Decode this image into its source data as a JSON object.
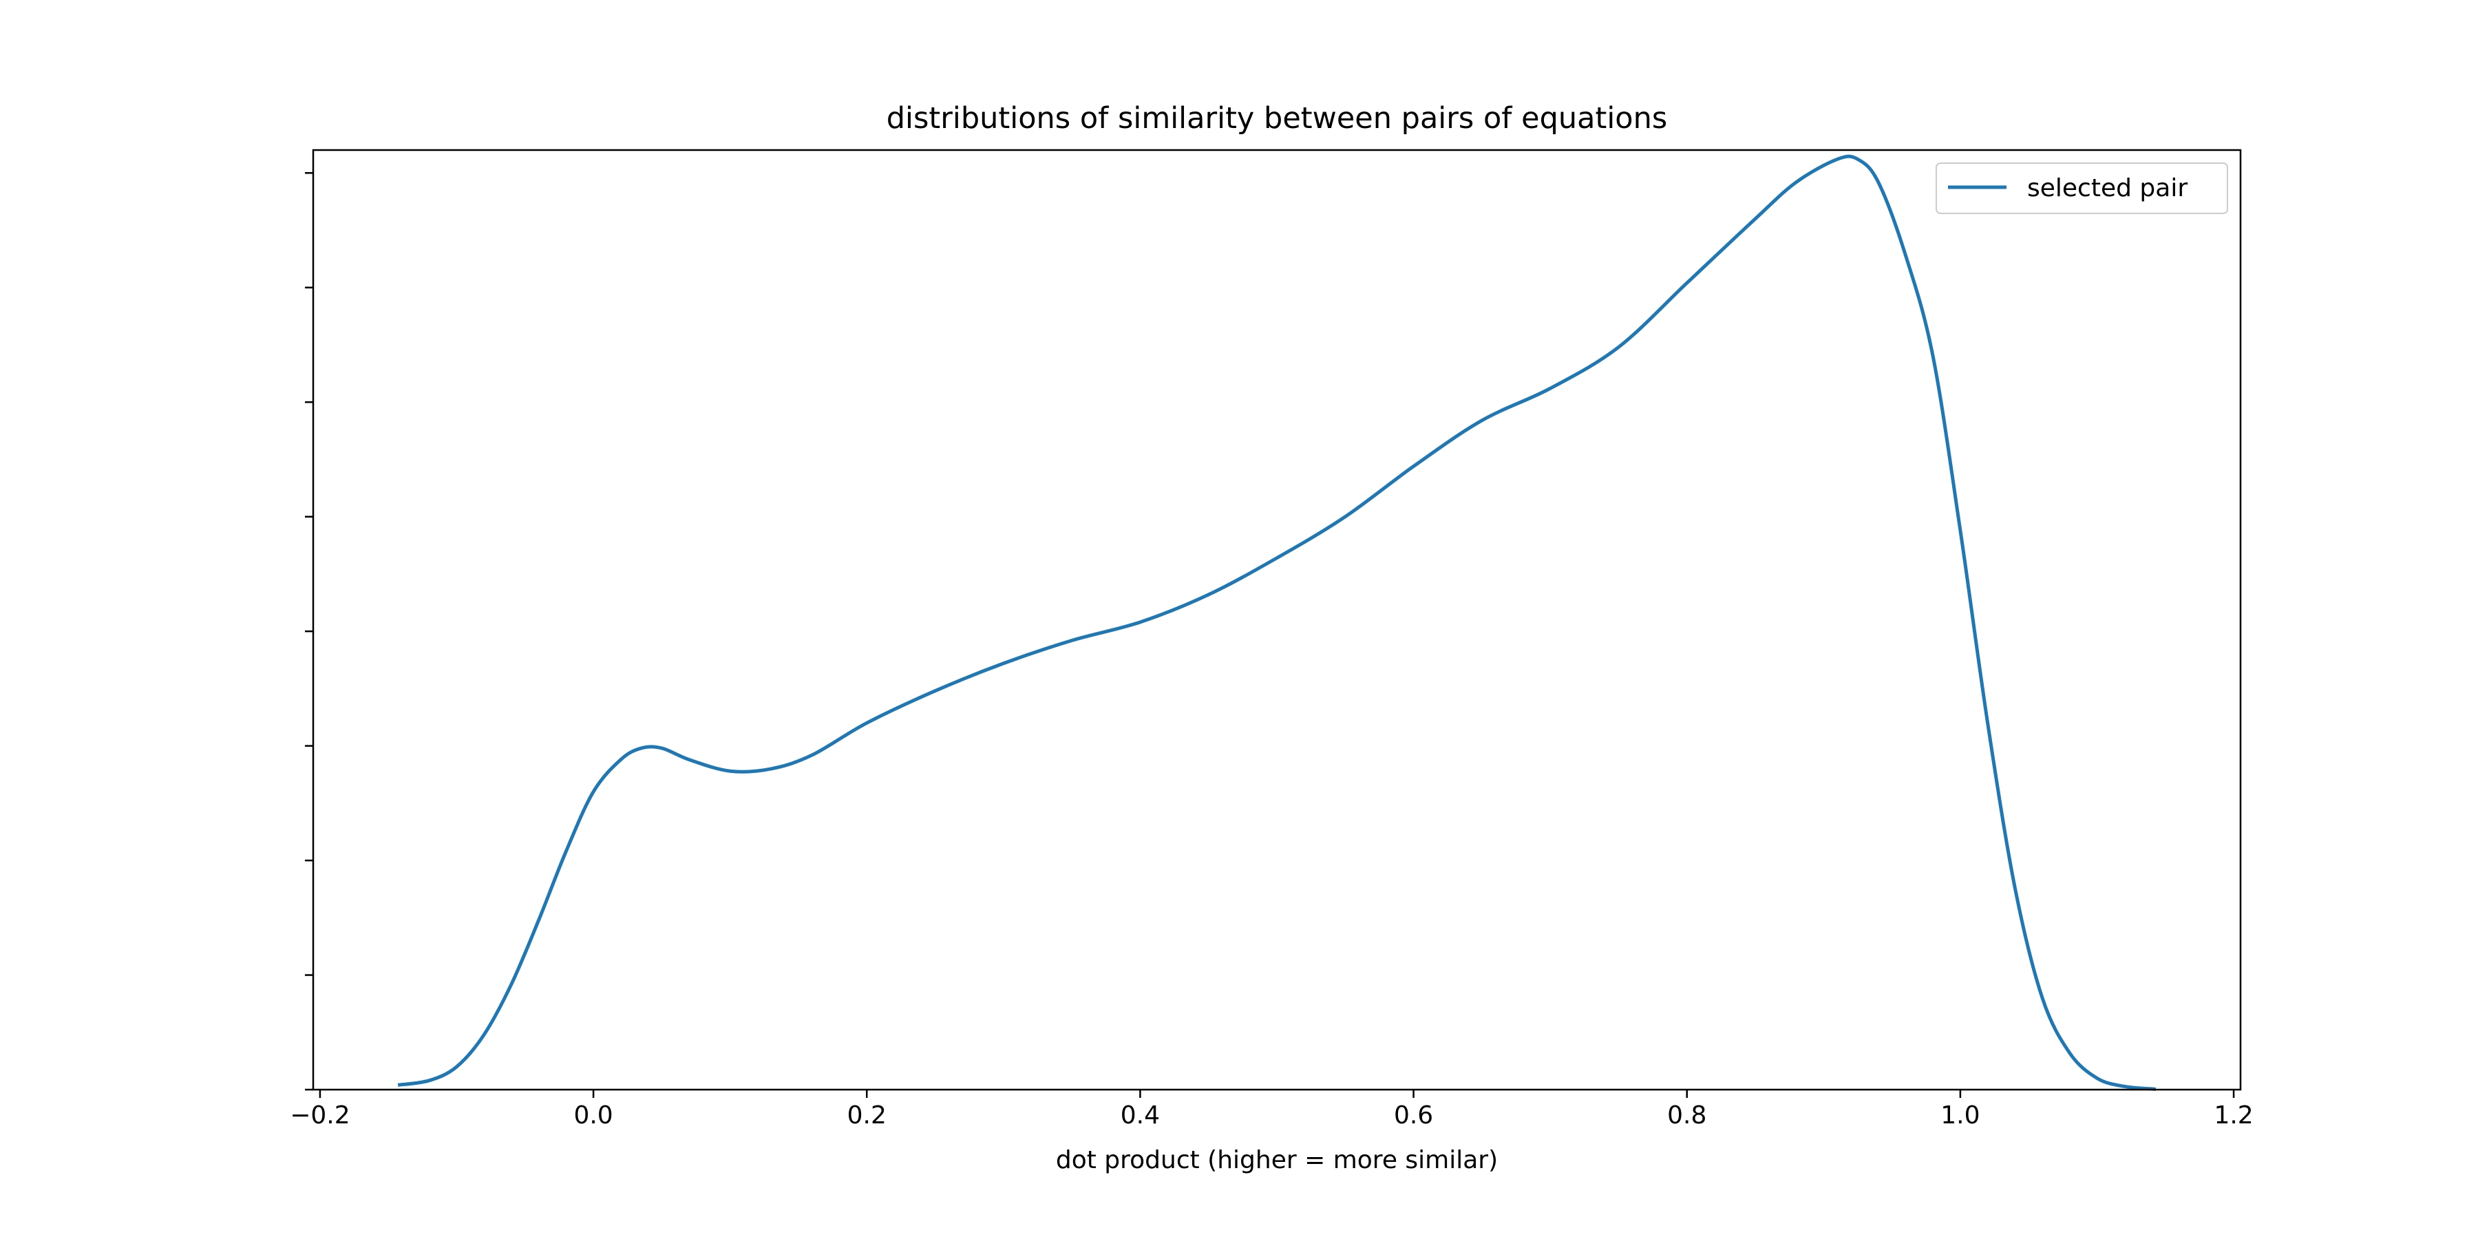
{
  "chart_data": {
    "type": "line",
    "title": "distributions of similarity between pairs of equations",
    "xlabel": "dot product (higher = more similar)",
    "ylabel": "",
    "xlim": [
      -0.205,
      1.205
    ],
    "ylim": [
      0,
      2.05
    ],
    "xticks": [
      -0.2,
      0.0,
      0.2,
      0.4,
      0.6,
      0.8,
      1.0,
      1.2
    ],
    "xtick_labels": [
      "−0.2",
      "0.0",
      "0.2",
      "0.4",
      "0.6",
      "0.8",
      "1.0",
      "1.2"
    ],
    "yticks": [
      0,
      0.25,
      0.5,
      0.75,
      1.0,
      1.25,
      1.5,
      1.75,
      2.0
    ],
    "ytick_labels_visible": false,
    "grid": false,
    "legend_position": "top-right",
    "series": [
      {
        "name": "selected pair",
        "color": "#1f77b4",
        "x": [
          -0.143,
          -0.12,
          -0.1,
          -0.08,
          -0.06,
          -0.04,
          -0.02,
          0.0,
          0.02,
          0.035,
          0.05,
          0.07,
          0.1,
          0.13,
          0.16,
          0.2,
          0.25,
          0.3,
          0.35,
          0.4,
          0.45,
          0.5,
          0.55,
          0.6,
          0.65,
          0.7,
          0.75,
          0.8,
          0.85,
          0.88,
          0.91,
          0.925,
          0.94,
          0.96,
          0.98,
          1.0,
          1.02,
          1.04,
          1.06,
          1.08,
          1.1,
          1.12,
          1.143
        ],
        "y": [
          0.01,
          0.02,
          0.05,
          0.12,
          0.23,
          0.37,
          0.52,
          0.65,
          0.72,
          0.745,
          0.745,
          0.72,
          0.695,
          0.7,
          0.73,
          0.8,
          0.87,
          0.93,
          0.98,
          1.02,
          1.08,
          1.16,
          1.25,
          1.36,
          1.46,
          1.53,
          1.62,
          1.76,
          1.9,
          1.98,
          2.03,
          2.03,
          1.98,
          1.82,
          1.6,
          1.22,
          0.8,
          0.44,
          0.2,
          0.08,
          0.025,
          0.007,
          0.001
        ]
      }
    ]
  }
}
